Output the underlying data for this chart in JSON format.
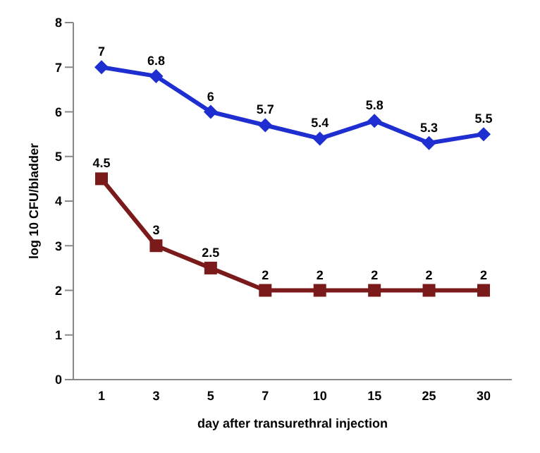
{
  "chart_data": {
    "type": "line",
    "xlabel": "day after transurethral injection",
    "ylabel": "log 10 CFU/bladder",
    "categories": [
      "1",
      "3",
      "5",
      "7",
      "10",
      "15",
      "25",
      "30"
    ],
    "series": [
      {
        "color": "#1f2ed0",
        "marker": "diamond",
        "values": [
          7,
          6.8,
          6,
          5.7,
          5.4,
          5.8,
          5.3,
          5.5
        ]
      },
      {
        "color": "#7b1a1a",
        "marker": "square",
        "values": [
          4.5,
          3,
          2.5,
          2,
          2,
          2,
          2,
          2
        ]
      }
    ],
    "ylim": [
      0,
      8
    ],
    "yticks": [
      0,
      1,
      2,
      3,
      4,
      5,
      6,
      7,
      8
    ],
    "grid": false,
    "legend": false,
    "data_labels": true
  }
}
